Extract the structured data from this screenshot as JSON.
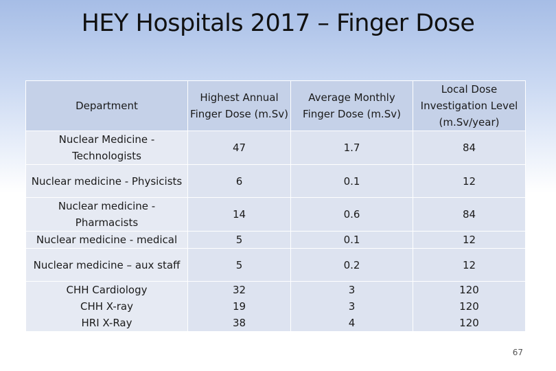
{
  "title": "HEY Hospitals 2017 – Finger Dose",
  "table": {
    "headers": [
      "Department",
      "Highest Annual Finger Dose (m.Sv)",
      "Average Monthly Finger Dose (m.Sv)",
      "Local Dose Investigation Level (m.Sv/year)"
    ],
    "rows": [
      {
        "dept": "Nuclear Medicine - Technologists",
        "highest": "47",
        "average": "1.7",
        "level": "84"
      },
      {
        "dept": "Nuclear medicine - Physicists",
        "highest": "6",
        "average": "0.1",
        "level": "12"
      },
      {
        "dept": "Nuclear medicine - Pharmacists",
        "highest": "14",
        "average": "0.6",
        "level": "84"
      },
      {
        "dept": "Nuclear medicine - medical",
        "highest": "5",
        "average": "0.1",
        "level": "12"
      },
      {
        "dept": "Nuclear medicine – aux staff",
        "highest": "5",
        "average": "0.2",
        "level": "12"
      },
      {
        "dept": "CHH Cardiology",
        "highest": "32",
        "average": "3",
        "level": "120"
      },
      {
        "dept": "CHH X-ray",
        "highest": "19",
        "average": "3",
        "level": "120"
      },
      {
        "dept": "HRI X-Ray",
        "highest": "38",
        "average": "4",
        "level": "120"
      }
    ]
  },
  "page_number": "67"
}
